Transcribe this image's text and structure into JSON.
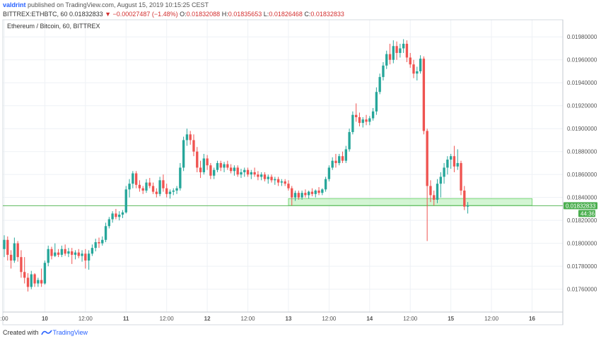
{
  "header": {
    "author": "valdrint",
    "published_text": "published on TradingView.com, August 15, 2019 10:15:25 CEST",
    "symbol": "BITTREX:ETHBTC, 60",
    "last_price": "0.01832833",
    "change": "▼ −0.00027487 (−1.48%)",
    "open_label": "O:",
    "open": "0.01832088",
    "high_label": "H:",
    "high": "0.01835653",
    "low_label": "L:",
    "low": "0.01826468",
    "close_label": "C:",
    "close": "0.01832833"
  },
  "footer": {
    "created_with": "Created with",
    "brand": "TradingView"
  },
  "colors": {
    "up": "#26a69a",
    "down": "#ef5350",
    "zone_fill": "#c8f2c8",
    "zone_stroke": "#7cd67c",
    "price_line": "#5cb85c",
    "price_tag": "#4caf50",
    "grid": "#eef1f5"
  },
  "chart_data": {
    "type": "candlestick",
    "title": "Ethereum / Bitcoin, 60, BITTREX",
    "yticks": [
      "0.01760000",
      "0.01780000",
      "0.01800000",
      "0.01820000",
      "0.01840000",
      "0.01860000",
      "0.01880000",
      "0.01900000",
      "0.01920000",
      "0.01940000",
      "0.01960000",
      "0.01980000"
    ],
    "ylim": [
      0.01745,
      0.0199
    ],
    "xticks": [
      {
        "label": ":00",
        "t": 0
      },
      {
        "label": "10",
        "t": 12
      },
      {
        "label": "12:00",
        "t": 24
      },
      {
        "label": "11",
        "t": 36
      },
      {
        "label": "12:00",
        "t": 48
      },
      {
        "label": "12",
        "t": 60
      },
      {
        "label": "12:00",
        "t": 72
      },
      {
        "label": "13",
        "t": 84
      },
      {
        "label": "12:00",
        "t": 96
      },
      {
        "label": "14",
        "t": 108
      },
      {
        "label": "12:00",
        "t": 120
      },
      {
        "label": "15",
        "t": 132
      },
      {
        "label": "12:00",
        "t": 144
      },
      {
        "label": "16",
        "t": 156
      }
    ],
    "xlim": [
      0,
      163
    ],
    "last_price_label": "0.01832833",
    "countdown": "44:36",
    "last_price": 0.01832833,
    "zone": {
      "t0": 84,
      "t1": 156,
      "low": 0.01833,
      "high": 0.01839
    },
    "ohlc": [
      [
        0.01795,
        0.01807,
        0.01788,
        0.01803
      ],
      [
        0.01803,
        0.01806,
        0.01785,
        0.0179
      ],
      [
        0.0179,
        0.01794,
        0.01778,
        0.01785
      ],
      [
        0.01785,
        0.01805,
        0.01783,
        0.018
      ],
      [
        0.018,
        0.01802,
        0.01784,
        0.01788
      ],
      [
        0.01788,
        0.01794,
        0.0177,
        0.01775
      ],
      [
        0.01775,
        0.01788,
        0.01765,
        0.0177
      ],
      [
        0.0177,
        0.01774,
        0.01758,
        0.01762
      ],
      [
        0.01762,
        0.01776,
        0.0176,
        0.01773
      ],
      [
        0.01773,
        0.01774,
        0.01762,
        0.01765
      ],
      [
        0.01765,
        0.0177,
        0.01762,
        0.01768
      ],
      [
        0.01768,
        0.01778,
        0.01762,
        0.01765
      ],
      [
        0.01765,
        0.01785,
        0.01764,
        0.01783
      ],
      [
        0.01783,
        0.01798,
        0.0178,
        0.01795
      ],
      [
        0.01795,
        0.01797,
        0.01786,
        0.01789
      ],
      [
        0.01789,
        0.018,
        0.01788,
        0.01792
      ],
      [
        0.01792,
        0.01795,
        0.01788,
        0.0179
      ],
      [
        0.0179,
        0.01798,
        0.01788,
        0.01795
      ],
      [
        0.01795,
        0.01799,
        0.01789,
        0.01791
      ],
      [
        0.01791,
        0.01796,
        0.01788,
        0.01793
      ],
      [
        0.01793,
        0.01796,
        0.01782,
        0.0179
      ],
      [
        0.0179,
        0.01794,
        0.01786,
        0.01792
      ],
      [
        0.01792,
        0.01795,
        0.01787,
        0.01789
      ],
      [
        0.01789,
        0.01794,
        0.01784,
        0.01791
      ],
      [
        0.01791,
        0.01795,
        0.01778,
        0.01785
      ],
      [
        0.01785,
        0.01794,
        0.01777,
        0.01791
      ],
      [
        0.01791,
        0.01799,
        0.01789,
        0.01796
      ],
      [
        0.01796,
        0.01804,
        0.01793,
        0.01801
      ],
      [
        0.01801,
        0.01805,
        0.01796,
        0.018
      ],
      [
        0.018,
        0.01806,
        0.01798,
        0.01803
      ],
      [
        0.01803,
        0.01818,
        0.01801,
        0.01815
      ],
      [
        0.01815,
        0.01823,
        0.01813,
        0.01821
      ],
      [
        0.01821,
        0.01828,
        0.01818,
        0.01826
      ],
      [
        0.01826,
        0.0183,
        0.01821,
        0.01823
      ],
      [
        0.01823,
        0.01828,
        0.0182,
        0.01825
      ],
      [
        0.01825,
        0.01829,
        0.01822,
        0.01827
      ],
      [
        0.01827,
        0.0185,
        0.01826,
        0.01847
      ],
      [
        0.01847,
        0.01856,
        0.0184,
        0.01852
      ],
      [
        0.01852,
        0.01863,
        0.01848,
        0.01861
      ],
      [
        0.01861,
        0.01863,
        0.01848,
        0.01851
      ],
      [
        0.01851,
        0.01855,
        0.01845,
        0.01848
      ],
      [
        0.01848,
        0.0185,
        0.01843,
        0.01846
      ],
      [
        0.01846,
        0.01856,
        0.01844,
        0.01853
      ],
      [
        0.01853,
        0.01857,
        0.01848,
        0.0185
      ],
      [
        0.0185,
        0.01853,
        0.01843,
        0.01845
      ],
      [
        0.01845,
        0.01848,
        0.0184,
        0.01843
      ],
      [
        0.01843,
        0.01858,
        0.01841,
        0.01855
      ],
      [
        0.01855,
        0.0186,
        0.01845,
        0.01848
      ],
      [
        0.01848,
        0.01852,
        0.0184,
        0.01843
      ],
      [
        0.01843,
        0.01847,
        0.01839,
        0.01845
      ],
      [
        0.01845,
        0.01848,
        0.01842,
        0.01846
      ],
      [
        0.01846,
        0.0185,
        0.01843,
        0.01848
      ],
      [
        0.01848,
        0.0187,
        0.01846,
        0.01866
      ],
      [
        0.01866,
        0.01893,
        0.01863,
        0.0189
      ],
      [
        0.0189,
        0.019,
        0.01885,
        0.01895
      ],
      [
        0.01895,
        0.01898,
        0.01886,
        0.0189
      ],
      [
        0.0189,
        0.01895,
        0.01876,
        0.0188
      ],
      [
        0.0188,
        0.01884,
        0.01862,
        0.01866
      ],
      [
        0.01866,
        0.01872,
        0.01857,
        0.01862
      ],
      [
        0.01862,
        0.01878,
        0.0186,
        0.01874
      ],
      [
        0.01874,
        0.01877,
        0.01864,
        0.01868
      ],
      [
        0.01868,
        0.0187,
        0.01856,
        0.01859
      ],
      [
        0.01859,
        0.01866,
        0.01856,
        0.01864
      ],
      [
        0.01864,
        0.01872,
        0.01862,
        0.0187
      ],
      [
        0.0187,
        0.01872,
        0.01863,
        0.01866
      ],
      [
        0.01866,
        0.01871,
        0.01862,
        0.01869
      ],
      [
        0.01869,
        0.01872,
        0.01864,
        0.01866
      ],
      [
        0.01866,
        0.01869,
        0.01861,
        0.01863
      ],
      [
        0.01863,
        0.01868,
        0.01859,
        0.01866
      ],
      [
        0.01866,
        0.01868,
        0.01858,
        0.0186
      ],
      [
        0.0186,
        0.01865,
        0.01857,
        0.01862
      ],
      [
        0.01862,
        0.01866,
        0.01858,
        0.01864
      ],
      [
        0.01864,
        0.01866,
        0.01858,
        0.0186
      ],
      [
        0.0186,
        0.01864,
        0.01856,
        0.01862
      ],
      [
        0.01862,
        0.01866,
        0.01858,
        0.0186
      ],
      [
        0.0186,
        0.01863,
        0.01855,
        0.01858
      ],
      [
        0.01858,
        0.01862,
        0.01855,
        0.0186
      ],
      [
        0.0186,
        0.01862,
        0.01854,
        0.01856
      ],
      [
        0.01856,
        0.0186,
        0.01852,
        0.01858
      ],
      [
        0.01858,
        0.0186,
        0.01853,
        0.01855
      ],
      [
        0.01855,
        0.01858,
        0.01851,
        0.01856
      ],
      [
        0.01856,
        0.01858,
        0.0185,
        0.01853
      ],
      [
        0.01853,
        0.01856,
        0.0185,
        0.01854
      ],
      [
        0.01854,
        0.01856,
        0.0185,
        0.01852
      ],
      [
        0.01852,
        0.01855,
        0.01846,
        0.01848
      ],
      [
        0.01848,
        0.0185,
        0.01833,
        0.0184
      ],
      [
        0.0184,
        0.01846,
        0.01837,
        0.01844
      ],
      [
        0.01844,
        0.01846,
        0.01838,
        0.0184
      ],
      [
        0.0184,
        0.01846,
        0.01838,
        0.01844
      ],
      [
        0.01844,
        0.01847,
        0.0184,
        0.01842
      ],
      [
        0.01842,
        0.01846,
        0.01839,
        0.01845
      ],
      [
        0.01845,
        0.01848,
        0.01841,
        0.01843
      ],
      [
        0.01843,
        0.01847,
        0.0184,
        0.01846
      ],
      [
        0.01846,
        0.01849,
        0.01842,
        0.01844
      ],
      [
        0.01844,
        0.01848,
        0.01842,
        0.01847
      ],
      [
        0.01847,
        0.01858,
        0.01845,
        0.01856
      ],
      [
        0.01856,
        0.01868,
        0.01854,
        0.01866
      ],
      [
        0.01866,
        0.01875,
        0.01864,
        0.01872
      ],
      [
        0.01872,
        0.01878,
        0.01866,
        0.0187
      ],
      [
        0.0187,
        0.01878,
        0.01868,
        0.01876
      ],
      [
        0.01876,
        0.0188,
        0.0187,
        0.01872
      ],
      [
        0.01872,
        0.01885,
        0.0187,
        0.01882
      ],
      [
        0.01882,
        0.019,
        0.0188,
        0.01897
      ],
      [
        0.01897,
        0.01915,
        0.01895,
        0.01912
      ],
      [
        0.01912,
        0.01922,
        0.01906,
        0.0191
      ],
      [
        0.0191,
        0.01914,
        0.01902,
        0.01905
      ],
      [
        0.01905,
        0.0191,
        0.01901,
        0.01908
      ],
      [
        0.01908,
        0.01912,
        0.01903,
        0.01906
      ],
      [
        0.01906,
        0.01911,
        0.01903,
        0.01909
      ],
      [
        0.01909,
        0.01918,
        0.01907,
        0.01915
      ],
      [
        0.01915,
        0.01936,
        0.01912,
        0.01932
      ],
      [
        0.01932,
        0.01948,
        0.0193,
        0.01945
      ],
      [
        0.01945,
        0.01958,
        0.01942,
        0.01955
      ],
      [
        0.01955,
        0.01968,
        0.01952,
        0.01965
      ],
      [
        0.01965,
        0.01974,
        0.01956,
        0.0196
      ],
      [
        0.0196,
        0.01977,
        0.01957,
        0.01972
      ],
      [
        0.01972,
        0.01976,
        0.0196,
        0.01966
      ],
      [
        0.01966,
        0.01974,
        0.01962,
        0.0197
      ],
      [
        0.0197,
        0.01978,
        0.01966,
        0.01974
      ],
      [
        0.01974,
        0.01977,
        0.01958,
        0.01962
      ],
      [
        0.01962,
        0.01966,
        0.01953,
        0.01956
      ],
      [
        0.01956,
        0.0196,
        0.01944,
        0.01948
      ],
      [
        0.01948,
        0.01954,
        0.01942,
        0.0195
      ],
      [
        0.0195,
        0.01964,
        0.01948,
        0.01961
      ],
      [
        0.01961,
        0.01963,
        0.01895,
        0.01898
      ],
      [
        0.01898,
        0.019,
        0.01802,
        0.0185
      ],
      [
        0.0185,
        0.01855,
        0.01836,
        0.01842
      ],
      [
        0.01842,
        0.01846,
        0.01833,
        0.01838
      ],
      [
        0.01838,
        0.01856,
        0.01835,
        0.01852
      ],
      [
        0.01852,
        0.01862,
        0.0184,
        0.01858
      ],
      [
        0.01858,
        0.0187,
        0.01852,
        0.01866
      ],
      [
        0.01866,
        0.01876,
        0.0186,
        0.01873
      ],
      [
        0.01873,
        0.01878,
        0.01865,
        0.01876
      ],
      [
        0.01876,
        0.01885,
        0.01862,
        0.01867
      ],
      [
        0.01867,
        0.01882,
        0.01864,
        0.0187
      ],
      [
        0.0187,
        0.01872,
        0.01842,
        0.01846
      ],
      [
        0.01846,
        0.0185,
        0.01829,
        0.01832
      ],
      [
        0.01832,
        0.01836,
        0.01826,
        0.01833
      ]
    ]
  }
}
